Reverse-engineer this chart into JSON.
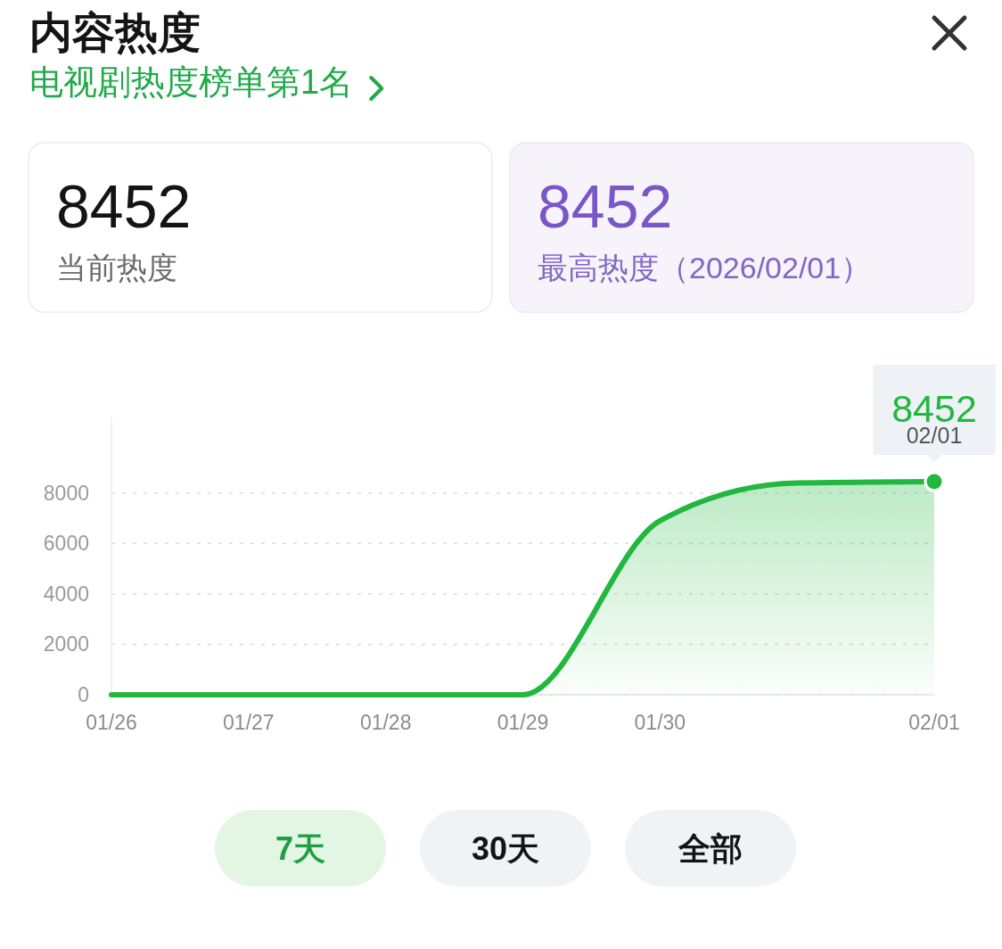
{
  "chart_data": [
    {
      "type": "other",
      "title": "内容热度",
      "subtitle": "电视剧热度榜单第1名",
      "annotations": [
        "8452",
        "当前热度",
        "8452",
        "最高热度（2026/02/01）"
      ]
    },
    {
      "type": "area",
      "categories": [
        "01/26",
        "01/27",
        "01/28",
        "01/29",
        "01/30",
        null,
        "02/01"
      ],
      "values": [
        0,
        0,
        0,
        0,
        6900,
        8400,
        8452
      ],
      "color": "#22b83f",
      "ylim": [
        0,
        11000
      ],
      "yticks": [
        0,
        2000,
        4000,
        6000,
        8000
      ],
      "grid": "y",
      "value_labels": [
        null,
        null,
        null,
        null,
        null,
        null,
        "8452"
      ],
      "annotations": [
        {
          "text": "02/01",
          "x": "02/01",
          "y": 8452
        },
        "7天",
        "30天",
        "全部"
      ]
    }
  ]
}
